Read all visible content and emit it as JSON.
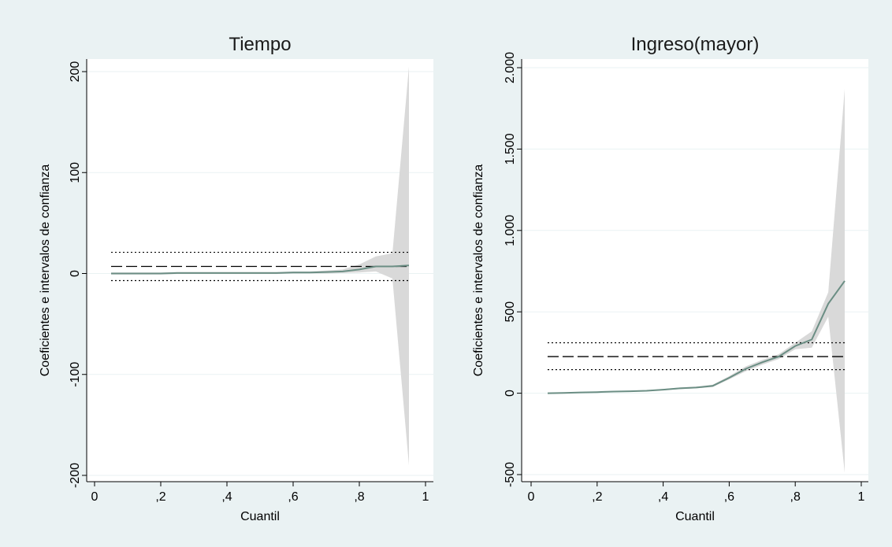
{
  "colors": {
    "background": "#eaf2f3",
    "plot_background": "#ffffff",
    "band_fill": "#d9d9d9",
    "estimate_line": "#6b8e84",
    "reference_lines": "#000000"
  },
  "chart_data": [
    {
      "type": "line",
      "title": "Tiempo",
      "xlabel": "Cuantil",
      "ylabel": "Coeficientes e intervalos de confianza",
      "xlim": [
        0,
        1
      ],
      "ylim": [
        -200,
        210
      ],
      "xticks": [
        0,
        0.2,
        0.4,
        0.6,
        0.8,
        1
      ],
      "xtick_labels": [
        "0",
        ",2",
        ",4",
        ",6",
        ",8",
        "1"
      ],
      "yticks": [
        -200,
        -100,
        0,
        100,
        200
      ],
      "ytick_labels": [
        "-200",
        "-100",
        "0",
        "100",
        "200"
      ],
      "grid": "horizontal",
      "legend": "none",
      "x": [
        0.05,
        0.1,
        0.15,
        0.2,
        0.25,
        0.3,
        0.35,
        0.4,
        0.45,
        0.5,
        0.55,
        0.6,
        0.65,
        0.7,
        0.75,
        0.8,
        0.85,
        0.9,
        0.95
      ],
      "series": [
        {
          "role": "estimate",
          "values": [
            0,
            0,
            0,
            0,
            0.5,
            0.5,
            0.5,
            0.5,
            0.5,
            0.5,
            0.5,
            1,
            1,
            1.5,
            2,
            4,
            7,
            7,
            8
          ],
          "lower": [
            -1,
            -1,
            -1,
            -1,
            -0.5,
            -0.5,
            -0.5,
            -0.5,
            -0.5,
            -0.5,
            -0.5,
            0,
            0,
            0,
            0.5,
            1,
            2,
            -5,
            -190
          ],
          "upper": [
            1,
            1,
            1,
            1,
            1.5,
            1.5,
            1.5,
            1.5,
            1.5,
            1.5,
            1.5,
            2,
            2,
            3,
            4,
            9,
            17,
            20,
            205
          ]
        }
      ],
      "reference_lines": {
        "ols_estimate": 7,
        "ols_lower": -7,
        "ols_upper": 21,
        "x_range": [
          0.05,
          0.95
        ]
      }
    },
    {
      "type": "line",
      "title": "Ingreso(mayor)",
      "xlabel": "Cuantil",
      "ylabel": "Coeficientes e intervalos de confianza",
      "xlim": [
        0,
        1
      ],
      "ylim": [
        -500,
        2000
      ],
      "xticks": [
        0,
        0.2,
        0.4,
        0.6,
        0.8,
        1
      ],
      "xtick_labels": [
        "0",
        ",2",
        ",4",
        ",6",
        ",8",
        "1"
      ],
      "yticks": [
        -500,
        0,
        500,
        1000,
        1500,
        2000
      ],
      "ytick_labels": [
        "-500",
        "0",
        "500",
        "1.000",
        "1.500",
        "2.000"
      ],
      "grid": "horizontal",
      "legend": "none",
      "x": [
        0.05,
        0.1,
        0.15,
        0.2,
        0.25,
        0.3,
        0.35,
        0.4,
        0.45,
        0.5,
        0.55,
        0.6,
        0.65,
        0.7,
        0.75,
        0.8,
        0.85,
        0.9,
        0.95
      ],
      "series": [
        {
          "role": "estimate",
          "values": [
            0,
            2,
            5,
            7,
            10,
            12,
            15,
            22,
            30,
            35,
            45,
            95,
            150,
            190,
            225,
            290,
            330,
            550,
            690
          ],
          "lower": [
            -2,
            0,
            3,
            5,
            7,
            9,
            12,
            18,
            25,
            30,
            38,
            85,
            135,
            175,
            210,
            270,
            280,
            470,
            -490
          ],
          "upper": [
            2,
            4,
            7,
            9,
            13,
            15,
            18,
            26,
            35,
            40,
            52,
            105,
            165,
            205,
            240,
            310,
            380,
            620,
            1870
          ]
        }
      ],
      "reference_lines": {
        "ols_estimate": 225,
        "ols_lower": 145,
        "ols_upper": 310,
        "x_range": [
          0.05,
          0.95
        ]
      }
    }
  ]
}
